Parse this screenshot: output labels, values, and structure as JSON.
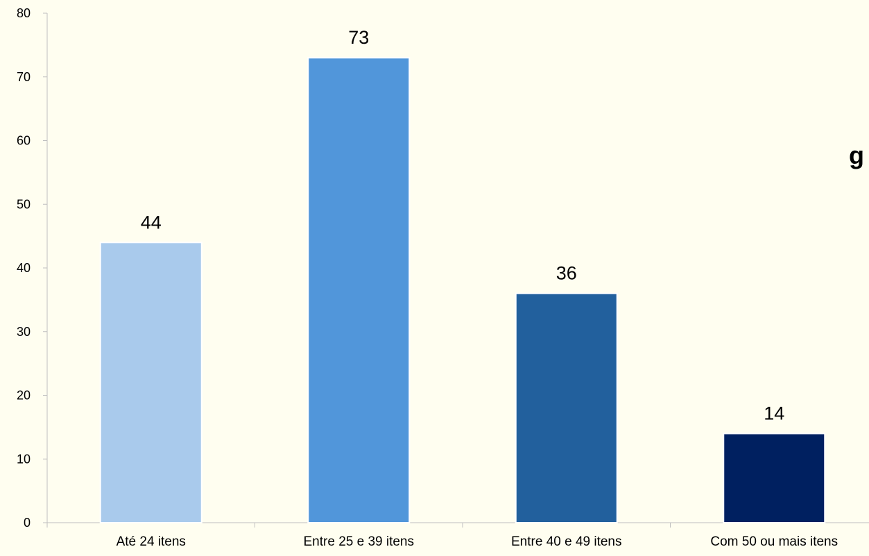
{
  "chart_data": {
    "type": "bar",
    "categories": [
      "Até 24 itens",
      "Entre 25 e 39 itens",
      "Entre 40 e 49 itens",
      "Com 50 ou mais itens"
    ],
    "values": [
      44,
      73,
      36,
      14
    ],
    "data_labels": [
      "44",
      "73",
      "36",
      "14"
    ],
    "ylim": [
      0,
      80
    ],
    "yticks": [
      "0",
      "10",
      "20",
      "30",
      "40",
      "50",
      "60",
      "70",
      "80"
    ],
    "colors": [
      "#A9CAEC",
      "#5196DA",
      "#22609D",
      "#002060"
    ],
    "grid": false,
    "legend": "none",
    "title": "",
    "xlabel": "",
    "ylabel": ""
  },
  "overlay_text": "g"
}
